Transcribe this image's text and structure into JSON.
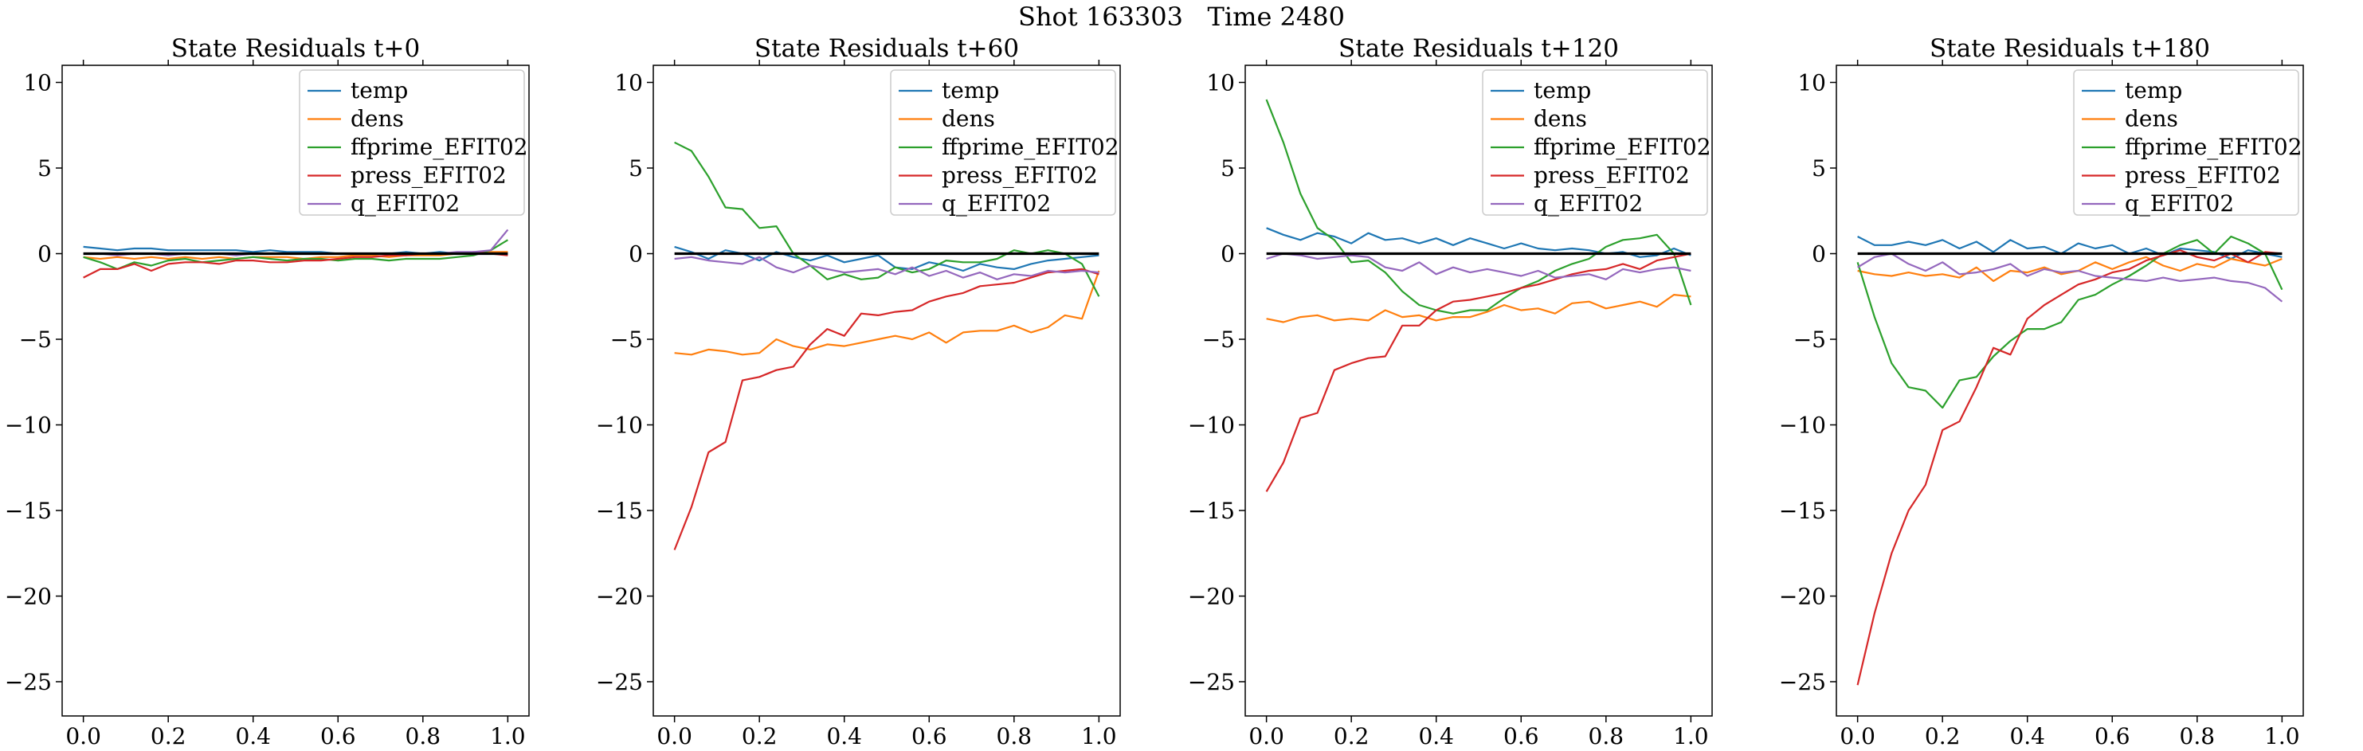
{
  "figure": {
    "suptitle": "Shot 163303   Time 2480"
  },
  "chart_data": [
    {
      "type": "line",
      "title": "State Residuals t+0",
      "xlim": [
        -0.05,
        1.05
      ],
      "ylim": [
        -27,
        11
      ],
      "xticks": [
        0.0,
        0.2,
        0.4,
        0.6,
        0.8,
        1.0
      ],
      "xtick_labels": [
        "0.0",
        "0.2",
        "0.4",
        "0.6",
        "0.8",
        "1.0"
      ],
      "yticks": [
        10,
        5,
        0,
        -5,
        -10,
        -15,
        -20,
        -25
      ],
      "ytick_labels": [
        "10",
        "5",
        "0",
        "−5",
        "−10",
        "−15",
        "−20",
        "−25"
      ],
      "legend_position": "top-right",
      "zero_line": true,
      "x": [
        0.0,
        0.04,
        0.08,
        0.12,
        0.16,
        0.2,
        0.24,
        0.28,
        0.32,
        0.36,
        0.4,
        0.44,
        0.48,
        0.52,
        0.56,
        0.6,
        0.64,
        0.68,
        0.72,
        0.76,
        0.8,
        0.84,
        0.88,
        0.92,
        0.96,
        1.0
      ],
      "series": [
        {
          "name": "temp",
          "color": "#1f77b4",
          "values": [
            0.4,
            0.3,
            0.2,
            0.3,
            0.3,
            0.2,
            0.2,
            0.2,
            0.2,
            0.2,
            0.1,
            0.2,
            0.1,
            0.1,
            0.1,
            0.0,
            0.0,
            0.0,
            0.0,
            0.1,
            0.0,
            0.1,
            0.0,
            0.0,
            0.1,
            0.0
          ]
        },
        {
          "name": "dens",
          "color": "#ff7f0e",
          "values": [
            -0.2,
            -0.3,
            -0.2,
            -0.3,
            -0.2,
            -0.3,
            -0.2,
            -0.3,
            -0.2,
            -0.3,
            -0.2,
            -0.2,
            -0.2,
            -0.3,
            -0.2,
            -0.2,
            -0.1,
            -0.1,
            -0.2,
            -0.1,
            -0.1,
            -0.1,
            0.0,
            0.0,
            0.1,
            0.1
          ]
        },
        {
          "name": "ffprime_EFIT02",
          "color": "#2ca02c",
          "values": [
            -0.2,
            -0.5,
            -0.9,
            -0.5,
            -0.7,
            -0.4,
            -0.3,
            -0.5,
            -0.4,
            -0.3,
            -0.2,
            -0.3,
            -0.4,
            -0.3,
            -0.3,
            -0.4,
            -0.3,
            -0.3,
            -0.4,
            -0.3,
            -0.3,
            -0.3,
            -0.2,
            -0.1,
            0.2,
            0.8
          ]
        },
        {
          "name": "press_EFIT02",
          "color": "#d62728",
          "values": [
            -1.4,
            -0.9,
            -0.9,
            -0.6,
            -1.0,
            -0.6,
            -0.5,
            -0.5,
            -0.6,
            -0.4,
            -0.4,
            -0.5,
            -0.5,
            -0.4,
            -0.4,
            -0.3,
            -0.2,
            -0.2,
            -0.1,
            -0.1,
            0.0,
            0.0,
            0.0,
            0.1,
            0.0,
            -0.1
          ]
        },
        {
          "name": "q_EFIT02",
          "color": "#9467bd",
          "values": [
            0.0,
            0.0,
            -0.1,
            0.0,
            0.0,
            -0.1,
            0.0,
            0.0,
            0.0,
            -0.1,
            0.0,
            0.0,
            0.0,
            0.0,
            0.0,
            0.0,
            0.0,
            0.0,
            0.0,
            0.0,
            0.0,
            0.0,
            0.1,
            0.1,
            0.2,
            1.4
          ]
        }
      ]
    },
    {
      "type": "line",
      "title": "State Residuals t+60",
      "xlim": [
        -0.05,
        1.05
      ],
      "ylim": [
        -27,
        11
      ],
      "xticks": [
        0.0,
        0.2,
        0.4,
        0.6,
        0.8,
        1.0
      ],
      "xtick_labels": [
        "0.0",
        "0.2",
        "0.4",
        "0.6",
        "0.8",
        "1.0"
      ],
      "yticks": [
        10,
        5,
        0,
        -5,
        -10,
        -15,
        -20,
        -25
      ],
      "ytick_labels": [
        "10",
        "5",
        "0",
        "−5",
        "−10",
        "−15",
        "−20",
        "−25"
      ],
      "legend_position": "top-right",
      "zero_line": true,
      "x": [
        0.0,
        0.04,
        0.08,
        0.12,
        0.16,
        0.2,
        0.24,
        0.28,
        0.32,
        0.36,
        0.4,
        0.44,
        0.48,
        0.52,
        0.56,
        0.6,
        0.64,
        0.68,
        0.72,
        0.76,
        0.8,
        0.84,
        0.88,
        0.92,
        0.96,
        1.0
      ],
      "series": [
        {
          "name": "temp",
          "color": "#1f77b4",
          "values": [
            0.4,
            0.1,
            -0.3,
            0.2,
            0.0,
            -0.4,
            0.1,
            -0.2,
            -0.4,
            -0.1,
            -0.5,
            -0.3,
            -0.1,
            -0.8,
            -0.9,
            -0.5,
            -0.7,
            -1.0,
            -0.6,
            -0.8,
            -0.9,
            -0.6,
            -0.4,
            -0.3,
            -0.2,
            -0.1
          ]
        },
        {
          "name": "dens",
          "color": "#ff7f0e",
          "values": [
            -5.8,
            -5.9,
            -5.6,
            -5.7,
            -5.9,
            -5.8,
            -5.0,
            -5.4,
            -5.6,
            -5.3,
            -5.4,
            -5.2,
            -5.0,
            -4.8,
            -5.0,
            -4.6,
            -5.2,
            -4.6,
            -4.5,
            -4.5,
            -4.2,
            -4.6,
            -4.3,
            -3.6,
            -3.8,
            -1.0
          ]
        },
        {
          "name": "ffprime_EFIT02",
          "color": "#2ca02c",
          "values": [
            6.5,
            6.0,
            4.5,
            2.7,
            2.6,
            1.5,
            1.6,
            0.0,
            -0.7,
            -1.5,
            -1.2,
            -1.5,
            -1.4,
            -0.8,
            -1.1,
            -0.9,
            -0.4,
            -0.5,
            -0.5,
            -0.3,
            0.2,
            0.0,
            0.2,
            0.0,
            -0.6,
            -2.5
          ]
        },
        {
          "name": "press_EFIT02",
          "color": "#d62728",
          "values": [
            -17.3,
            -14.8,
            -11.6,
            -11.0,
            -7.4,
            -7.2,
            -6.8,
            -6.6,
            -5.3,
            -4.4,
            -4.8,
            -3.5,
            -3.6,
            -3.4,
            -3.3,
            -2.8,
            -2.5,
            -2.3,
            -1.9,
            -1.8,
            -1.7,
            -1.4,
            -1.1,
            -1.0,
            -0.9,
            -1.2
          ]
        },
        {
          "name": "q_EFIT02",
          "color": "#9467bd",
          "values": [
            -0.3,
            -0.2,
            -0.4,
            -0.5,
            -0.6,
            -0.2,
            -0.8,
            -1.1,
            -0.7,
            -0.9,
            -1.1,
            -1.0,
            -0.9,
            -1.2,
            -0.8,
            -1.3,
            -1.0,
            -1.4,
            -1.1,
            -1.5,
            -1.2,
            -1.3,
            -1.0,
            -1.1,
            -1.0,
            -1.1
          ]
        }
      ]
    },
    {
      "type": "line",
      "title": "State Residuals t+120",
      "xlim": [
        -0.05,
        1.05
      ],
      "ylim": [
        -27,
        11
      ],
      "xticks": [
        0.0,
        0.2,
        0.4,
        0.6,
        0.8,
        1.0
      ],
      "xtick_labels": [
        "0.0",
        "0.2",
        "0.4",
        "0.6",
        "0.8",
        "1.0"
      ],
      "yticks": [
        10,
        5,
        0,
        -5,
        -10,
        -15,
        -20,
        -25
      ],
      "ytick_labels": [
        "10",
        "5",
        "0",
        "−5",
        "−10",
        "−15",
        "−20",
        "−25"
      ],
      "legend_position": "top-right",
      "zero_line": true,
      "x": [
        0.0,
        0.04,
        0.08,
        0.12,
        0.16,
        0.2,
        0.24,
        0.28,
        0.32,
        0.36,
        0.4,
        0.44,
        0.48,
        0.52,
        0.56,
        0.6,
        0.64,
        0.68,
        0.72,
        0.76,
        0.8,
        0.84,
        0.88,
        0.92,
        0.96,
        1.0
      ],
      "series": [
        {
          "name": "temp",
          "color": "#1f77b4",
          "values": [
            1.5,
            1.1,
            0.8,
            1.2,
            1.0,
            0.6,
            1.2,
            0.8,
            0.9,
            0.6,
            0.9,
            0.5,
            0.9,
            0.6,
            0.3,
            0.6,
            0.3,
            0.2,
            0.3,
            0.2,
            0.0,
            0.1,
            -0.2,
            -0.1,
            0.3,
            -0.1
          ]
        },
        {
          "name": "dens",
          "color": "#ff7f0e",
          "values": [
            -3.8,
            -4.0,
            -3.7,
            -3.6,
            -3.9,
            -3.8,
            -3.9,
            -3.3,
            -3.7,
            -3.6,
            -3.9,
            -3.7,
            -3.7,
            -3.4,
            -3.0,
            -3.3,
            -3.2,
            -3.5,
            -2.9,
            -2.8,
            -3.2,
            -3.0,
            -2.8,
            -3.1,
            -2.4,
            -2.5
          ]
        },
        {
          "name": "ffprime_EFIT02",
          "color": "#2ca02c",
          "values": [
            9.0,
            6.5,
            3.5,
            1.5,
            0.8,
            -0.5,
            -0.4,
            -1.1,
            -2.2,
            -3.0,
            -3.3,
            -3.5,
            -3.3,
            -3.3,
            -2.6,
            -2.0,
            -1.6,
            -1.0,
            -0.6,
            -0.3,
            0.4,
            0.8,
            0.9,
            1.1,
            0.0,
            -3.0
          ]
        },
        {
          "name": "press_EFIT02",
          "color": "#d62728",
          "values": [
            -13.9,
            -12.2,
            -9.6,
            -9.3,
            -6.8,
            -6.4,
            -6.1,
            -6.0,
            -4.2,
            -4.2,
            -3.3,
            -2.8,
            -2.7,
            -2.5,
            -2.3,
            -2.0,
            -1.8,
            -1.5,
            -1.2,
            -1.0,
            -0.9,
            -0.6,
            -0.9,
            -0.4,
            -0.2,
            0.0
          ]
        },
        {
          "name": "q_EFIT02",
          "color": "#9467bd",
          "values": [
            -0.3,
            0.0,
            -0.1,
            -0.3,
            -0.2,
            -0.1,
            -0.2,
            -0.8,
            -1.0,
            -0.5,
            -1.2,
            -0.8,
            -1.1,
            -0.9,
            -1.1,
            -1.3,
            -1.0,
            -1.4,
            -1.3,
            -1.2,
            -1.5,
            -0.9,
            -1.1,
            -0.9,
            -0.8,
            -1.0
          ]
        }
      ]
    },
    {
      "type": "line",
      "title": "State Residuals t+180",
      "xlim": [
        -0.05,
        1.05
      ],
      "ylim": [
        -27,
        11
      ],
      "xticks": [
        0.0,
        0.2,
        0.4,
        0.6,
        0.8,
        1.0
      ],
      "xtick_labels": [
        "0.0",
        "0.2",
        "0.4",
        "0.6",
        "0.8",
        "1.0"
      ],
      "yticks": [
        10,
        5,
        0,
        -5,
        -10,
        -15,
        -20,
        -25
      ],
      "ytick_labels": [
        "10",
        "5",
        "0",
        "−5",
        "−10",
        "−15",
        "−20",
        "−25"
      ],
      "legend_position": "top-right",
      "zero_line": true,
      "x": [
        0.0,
        0.04,
        0.08,
        0.12,
        0.16,
        0.2,
        0.24,
        0.28,
        0.32,
        0.36,
        0.4,
        0.44,
        0.48,
        0.52,
        0.56,
        0.6,
        0.64,
        0.68,
        0.72,
        0.76,
        0.8,
        0.84,
        0.88,
        0.92,
        0.96,
        1.0
      ],
      "series": [
        {
          "name": "temp",
          "color": "#1f77b4",
          "values": [
            1.0,
            0.5,
            0.5,
            0.7,
            0.5,
            0.8,
            0.3,
            0.7,
            0.1,
            0.8,
            0.3,
            0.4,
            0.0,
            0.6,
            0.3,
            0.5,
            0.0,
            0.3,
            -0.1,
            0.3,
            0.2,
            0.1,
            -0.3,
            0.2,
            0.0,
            -0.2
          ]
        },
        {
          "name": "dens",
          "color": "#ff7f0e",
          "values": [
            -1.0,
            -1.2,
            -1.3,
            -1.1,
            -1.3,
            -1.2,
            -1.4,
            -0.8,
            -1.6,
            -1.0,
            -1.1,
            -0.8,
            -1.2,
            -1.0,
            -0.5,
            -0.9,
            -0.5,
            -0.2,
            -0.7,
            -1.0,
            -0.6,
            -0.8,
            -0.3,
            -0.5,
            -0.7,
            -0.3
          ]
        },
        {
          "name": "ffprime_EFIT02",
          "color": "#2ca02c",
          "values": [
            -0.5,
            -3.7,
            -6.4,
            -7.8,
            -8.0,
            -9.0,
            -7.4,
            -7.2,
            -6.0,
            -5.1,
            -4.4,
            -4.4,
            -4.0,
            -2.7,
            -2.4,
            -1.8,
            -1.3,
            -0.7,
            0.0,
            0.5,
            0.8,
            0.0,
            1.0,
            0.6,
            0.0,
            -2.1
          ]
        },
        {
          "name": "press_EFIT02",
          "color": "#d62728",
          "values": [
            -25.2,
            -21.0,
            -17.5,
            -15.0,
            -13.5,
            -10.3,
            -9.8,
            -7.8,
            -5.5,
            -5.9,
            -3.8,
            -3.0,
            -2.4,
            -1.8,
            -1.5,
            -1.1,
            -0.9,
            -0.4,
            -0.1,
            0.2,
            -0.2,
            -0.4,
            0.0,
            -0.5,
            0.1,
            0.0
          ]
        },
        {
          "name": "q_EFIT02",
          "color": "#9467bd",
          "values": [
            -0.8,
            -0.2,
            0.0,
            -0.6,
            -1.0,
            -0.5,
            -1.2,
            -1.1,
            -0.9,
            -0.6,
            -1.3,
            -0.9,
            -1.1,
            -1.0,
            -1.3,
            -1.4,
            -1.5,
            -1.6,
            -1.4,
            -1.6,
            -1.5,
            -1.4,
            -1.6,
            -1.7,
            -2.0,
            -2.8
          ]
        }
      ]
    }
  ]
}
